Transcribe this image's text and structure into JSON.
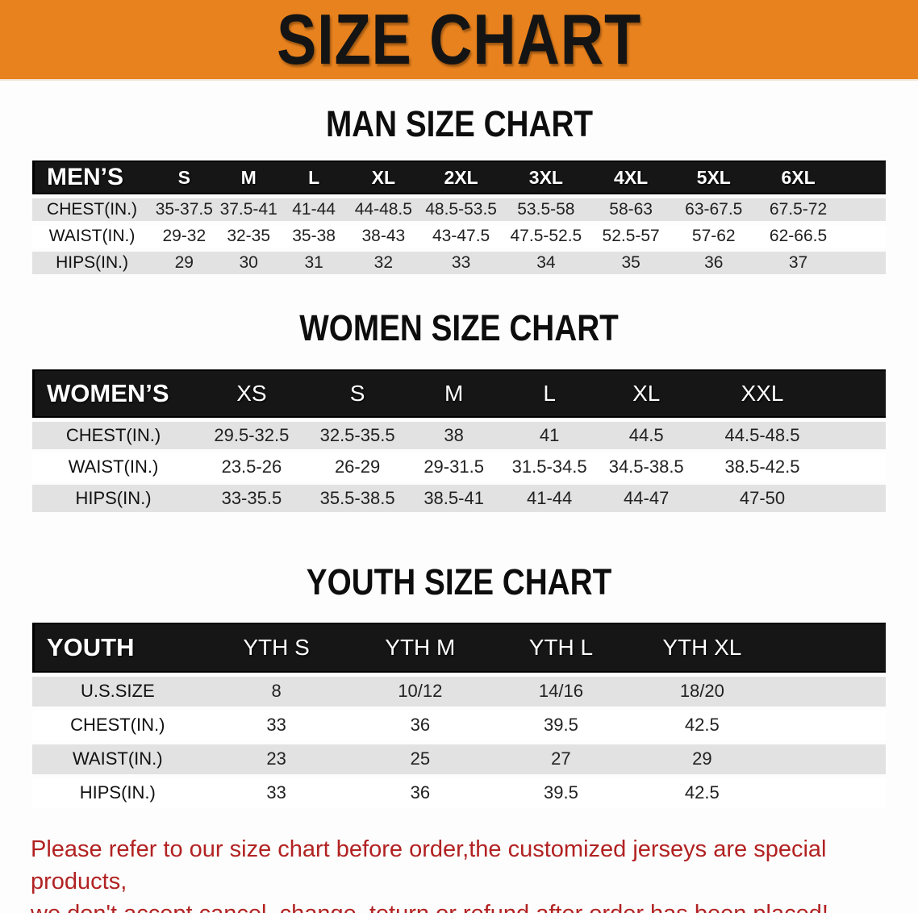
{
  "banner": {
    "title": "SIZE CHART",
    "bg": "#E8821E"
  },
  "sections": [
    {
      "heading": "MAN SIZE CHART",
      "table": {
        "header": [
          "MEN’S",
          "S",
          "M",
          "L",
          "XL",
          "2XL",
          "3XL",
          "4XL",
          "5XL",
          "6XL"
        ],
        "rows": [
          {
            "label": "CHEST(IN.)",
            "values": [
              "35-37.5",
              "37.5-41",
              "41-44",
              "44-48.5",
              "48.5-53.5",
              "53.5-58",
              "58-63",
              "63-67.5",
              "67.5-72"
            ]
          },
          {
            "label": "WAIST(IN.)",
            "values": [
              "29-32",
              "32-35",
              "35-38",
              "38-43",
              "43-47.5",
              "47.5-52.5",
              "52.5-57",
              "57-62",
              "62-66.5"
            ]
          },
          {
            "label": "HIPS(IN.)",
            "values": [
              "29",
              "30",
              "31",
              "32",
              "33",
              "34",
              "35",
              "36",
              "37"
            ]
          }
        ]
      }
    },
    {
      "heading": "WOMEN SIZE CHART",
      "table": {
        "header": [
          "WOMEN’S",
          "XS",
          "S",
          "M",
          "L",
          "XL",
          "XXL"
        ],
        "rows": [
          {
            "label": "CHEST(IN.)",
            "values": [
              "29.5-32.5",
              "32.5-35.5",
              "38",
              "41",
              "44.5",
              "44.5-48.5"
            ]
          },
          {
            "label": "WAIST(IN.)",
            "values": [
              "23.5-26",
              "26-29",
              "29-31.5",
              "31.5-34.5",
              "34.5-38.5",
              "38.5-42.5"
            ]
          },
          {
            "label": "HIPS(IN.)",
            "values": [
              "33-35.5",
              "35.5-38.5",
              "38.5-41",
              "41-44",
              "44-47",
              "47-50"
            ]
          }
        ]
      }
    },
    {
      "heading": "YOUTH SIZE CHART",
      "table": {
        "header": [
          "YOUTH",
          "YTH S",
          "YTH M",
          "YTH L",
          "YTH XL"
        ],
        "rows": [
          {
            "label": "U.S.SIZE",
            "values": [
              "8",
              "10/12",
              "14/16",
              "18/20"
            ]
          },
          {
            "label": "CHEST(IN.)",
            "values": [
              "33",
              "36",
              "39.5",
              "42.5"
            ]
          },
          {
            "label": "WAIST(IN.)",
            "values": [
              "23",
              "25",
              "27",
              "29"
            ]
          },
          {
            "label": "HIPS(IN.)",
            "values": [
              "33",
              "36",
              "39.5",
              "42.5"
            ]
          }
        ]
      }
    }
  ],
  "disclaimer": {
    "line1": "Please refer to our size chart before order,the customized jerseys are special products,",
    "line2": "we don't accept cancel, change, teturn or refund after order has been placed!",
    "color": "#B22222"
  }
}
